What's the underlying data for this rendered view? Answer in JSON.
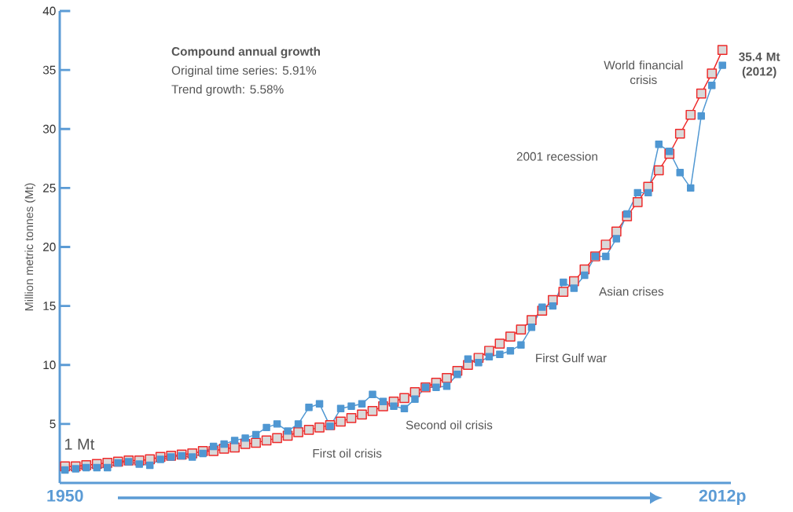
{
  "chart_data": {
    "type": "line",
    "ylabel": "Million metric tonnes (Mt)",
    "xlim": [
      1949.5,
      2012.8
    ],
    "ylim": [
      0,
      40
    ],
    "xticks": [
      {
        "value": 1950,
        "label": "1950"
      },
      {
        "value": 2012,
        "label": "2012p"
      }
    ],
    "yticks": [
      5,
      10,
      15,
      20,
      25,
      30,
      35,
      40
    ],
    "marker": "square",
    "line_style": "solid",
    "x": [
      1950,
      1951,
      1952,
      1953,
      1954,
      1955,
      1956,
      1957,
      1958,
      1959,
      1960,
      1961,
      1962,
      1963,
      1964,
      1965,
      1966,
      1967,
      1968,
      1969,
      1970,
      1971,
      1972,
      1973,
      1974,
      1975,
      1976,
      1977,
      1978,
      1979,
      1980,
      1981,
      1982,
      1983,
      1984,
      1985,
      1986,
      1987,
      1988,
      1989,
      1990,
      1991,
      1992,
      1993,
      1994,
      1995,
      1996,
      1997,
      1998,
      1999,
      2000,
      2001,
      2002,
      2003,
      2004,
      2005,
      2006,
      2007,
      2008,
      2009,
      2010,
      2011,
      2012
    ],
    "series": [
      {
        "color": "#ee2a2a",
        "values": [
          1.4,
          1.4,
          1.5,
          1.6,
          1.7,
          1.8,
          1.9,
          1.9,
          2.0,
          2.2,
          2.3,
          2.4,
          2.5,
          2.7,
          2.7,
          2.9,
          3.0,
          3.3,
          3.4,
          3.6,
          3.8,
          4.0,
          4.3,
          4.5,
          4.7,
          4.9,
          5.2,
          5.5,
          5.8,
          6.1,
          6.5,
          6.9,
          7.2,
          7.7,
          8.1,
          8.5,
          8.9,
          9.5,
          10.0,
          10.6,
          11.2,
          11.8,
          12.4,
          13.0,
          13.8,
          14.6,
          15.5,
          16.2,
          17.1,
          18.1,
          19.2,
          20.2,
          21.3,
          22.6,
          23.8,
          25.1,
          26.5,
          27.9,
          29.6,
          31.2,
          33.0,
          34.7,
          36.7
        ]
      },
      {
        "color": "#4f97d2",
        "values": [
          1.1,
          1.2,
          1.3,
          1.3,
          1.3,
          1.7,
          1.8,
          1.6,
          1.5,
          2.0,
          2.2,
          2.3,
          2.2,
          2.5,
          3.1,
          3.3,
          3.6,
          3.8,
          4.1,
          4.7,
          5.0,
          4.4,
          5.0,
          6.4,
          6.7,
          4.8,
          6.3,
          6.5,
          6.7,
          7.5,
          6.9,
          6.5,
          6.3,
          7.1,
          8.1,
          8.1,
          8.2,
          9.2,
          10.5,
          10.2,
          10.7,
          10.9,
          11.2,
          11.7,
          13.2,
          14.9,
          15.0,
          17.0,
          16.5,
          17.6,
          19.2,
          19.2,
          20.7,
          22.8,
          24.6,
          24.6,
          28.7,
          28.1,
          26.3,
          25.0,
          31.1,
          33.7,
          35.4
        ]
      }
    ],
    "annotations": [
      "Compound annual growth",
      "Original time series: 5.91%",
      "Trend growth: 5.58%",
      "1 Mt",
      "World financial crisis",
      "2001 recession",
      "Asian crises",
      "First Gulf war",
      "Second oil crisis",
      "First oil crisis",
      {
        "text": "35.4 Mt (2012)",
        "x": 2012,
        "y": 35.4
      }
    ]
  }
}
